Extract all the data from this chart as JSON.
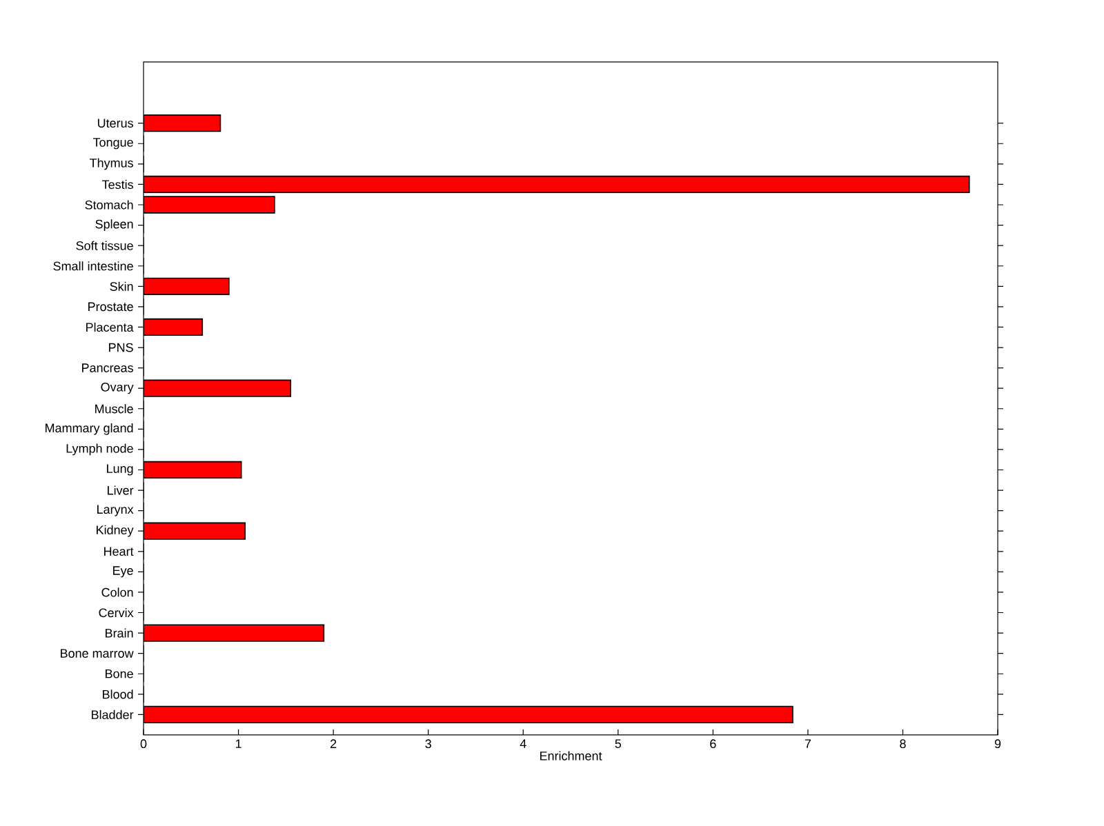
{
  "chart_data": {
    "type": "bar",
    "orientation": "horizontal",
    "xlabel": "Enrichment",
    "color": "#ff0000",
    "categories": [
      "Uterus",
      "Tongue",
      "Thymus",
      "Testis",
      "Stomach",
      "Spleen",
      "Soft tissue",
      "Small intestine",
      "Skin",
      "Prostate",
      "Placenta",
      "PNS",
      "Pancreas",
      "Ovary",
      "Muscle",
      "Mammary gland",
      "Lymph node",
      "Lung",
      "Liver",
      "Larynx",
      "Kidney",
      "Heart",
      "Eye",
      "Colon",
      "Cervix",
      "Brain",
      "Bone marrow",
      "Bone",
      "Blood",
      "Bladder"
    ],
    "values": [
      0.81,
      0,
      0,
      8.7,
      1.38,
      0,
      0,
      0,
      0.9,
      0,
      0.62,
      0,
      0,
      1.55,
      0,
      0,
      0,
      1.03,
      0,
      0,
      1.07,
      0,
      0,
      0,
      0,
      1.9,
      0,
      0,
      0,
      6.84
    ],
    "xlim": [
      0,
      9
    ],
    "xticks": [
      0,
      1,
      2,
      3,
      4,
      5,
      6,
      7,
      8,
      9
    ],
    "grid": false
  }
}
